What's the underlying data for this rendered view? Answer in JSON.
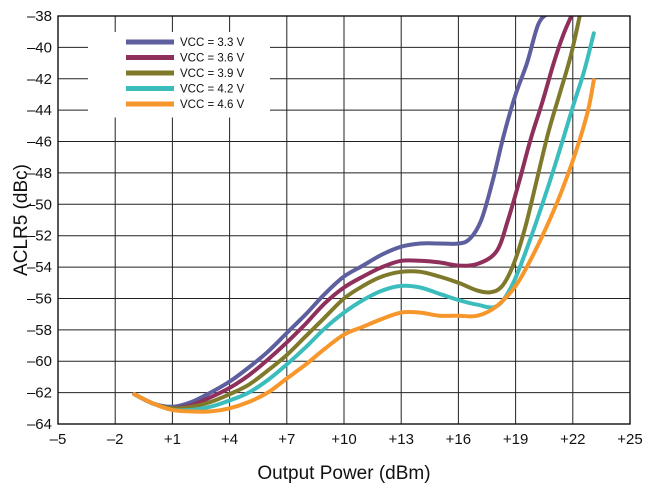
{
  "chart_data": {
    "type": "line",
    "title": "",
    "xlabel": "Output Power (dBm)",
    "ylabel": "ACLR5 (dBc)",
    "xlim": [
      -5,
      25
    ],
    "ylim": [
      -64,
      -38
    ],
    "grid": true,
    "legend_position": "top-left",
    "x_ticks": [
      {
        "value": -5,
        "label": "–5"
      },
      {
        "value": -2,
        "label": "–2"
      },
      {
        "value": 1,
        "label": "+1"
      },
      {
        "value": 4,
        "label": "+4"
      },
      {
        "value": 7,
        "label": "+7"
      },
      {
        "value": 10,
        "label": "+10"
      },
      {
        "value": 13,
        "label": "+13"
      },
      {
        "value": 16,
        "label": "+16"
      },
      {
        "value": 19,
        "label": "+19"
      },
      {
        "value": 22,
        "label": "+22"
      },
      {
        "value": 25,
        "label": "+25"
      }
    ],
    "y_ticks": [
      {
        "value": -38,
        "label": "–38"
      },
      {
        "value": -40,
        "label": "–40"
      },
      {
        "value": -42,
        "label": "–42"
      },
      {
        "value": -44,
        "label": "–44"
      },
      {
        "value": -46,
        "label": "–46"
      },
      {
        "value": -48,
        "label": "–48"
      },
      {
        "value": -50,
        "label": "–50"
      },
      {
        "value": -52,
        "label": "–52"
      },
      {
        "value": -54,
        "label": "–54"
      },
      {
        "value": -56,
        "label": "–56"
      },
      {
        "value": -58,
        "label": "–58"
      },
      {
        "value": -60,
        "label": "–60"
      },
      {
        "value": -62,
        "label": "–62"
      },
      {
        "value": -64,
        "label": "–64"
      }
    ],
    "series": [
      {
        "name": "VCC = 3.3 V",
        "color": "#5e5f9e",
        "x": [
          -1,
          0,
          1,
          2,
          3,
          4,
          5,
          6,
          7,
          8,
          9,
          10,
          11,
          12,
          13,
          14,
          15,
          16,
          16.6,
          17.2,
          17.8,
          18.4,
          19,
          19.6,
          20.2,
          20.8,
          21.3
        ],
        "y": [
          -62.1,
          -62.7,
          -62.9,
          -62.6,
          -62,
          -61.3,
          -60.4,
          -59.4,
          -58.2,
          -57,
          -55.7,
          -54.6,
          -53.9,
          -53.2,
          -52.7,
          -52.5,
          -52.5,
          -52.5,
          -52.2,
          -51,
          -48.5,
          -45.5,
          -43,
          -41,
          -38.5,
          -37.8,
          -37.8
        ]
      },
      {
        "name": "VCC = 3.6 V",
        "color": "#8e2f5c",
        "x": [
          -1,
          0,
          1,
          2,
          3,
          4,
          5,
          6,
          7,
          8,
          9,
          10,
          11,
          12,
          13,
          14,
          15,
          16,
          17,
          18,
          18.6,
          19.2,
          19.8,
          20.4,
          21,
          21.5,
          22
        ],
        "y": [
          -62.1,
          -62.7,
          -63,
          -62.8,
          -62.3,
          -61.7,
          -60.9,
          -59.9,
          -58.8,
          -57.6,
          -56.3,
          -55.3,
          -54.6,
          -54,
          -53.6,
          -53.6,
          -53.7,
          -53.9,
          -53.8,
          -53,
          -51,
          -48.5,
          -45.8,
          -43.5,
          -41,
          -39.2,
          -37.8
        ]
      },
      {
        "name": "VCC = 3.9 V",
        "color": "#7f7a2b",
        "x": [
          -1,
          0,
          1,
          2,
          3,
          4,
          5,
          6,
          7,
          8,
          9,
          10,
          11,
          12,
          13,
          14,
          15,
          16,
          17,
          17.7,
          18.3,
          18.9,
          19.5,
          20.1,
          20.7,
          21.3,
          21.9,
          22.4
        ],
        "y": [
          -62.1,
          -62.7,
          -63,
          -62.9,
          -62.6,
          -62.1,
          -61.5,
          -60.6,
          -59.6,
          -58.4,
          -57.2,
          -56,
          -55.2,
          -54.6,
          -54.3,
          -54.3,
          -54.6,
          -55,
          -55.5,
          -55.6,
          -55.2,
          -53.8,
          -51.5,
          -48.5,
          -45.5,
          -43,
          -40.5,
          -37.8
        ]
      },
      {
        "name": "VCC = 4.2 V",
        "color": "#3cbdbd",
        "x": [
          -1,
          0,
          1,
          2,
          3,
          4,
          5,
          6,
          7,
          8,
          9,
          10,
          11,
          12,
          13,
          14,
          15,
          16,
          17,
          18,
          18.8,
          19.6,
          20.4,
          21.2,
          22,
          22.6,
          23.1
        ],
        "y": [
          -62.1,
          -62.7,
          -63.1,
          -63.1,
          -62.9,
          -62.5,
          -62,
          -61.2,
          -60.2,
          -59.1,
          -57.9,
          -56.9,
          -56.1,
          -55.5,
          -55.2,
          -55.3,
          -55.7,
          -56.1,
          -56.4,
          -56.5,
          -55.2,
          -52.8,
          -50,
          -47,
          -43.8,
          -41.5,
          -39.1
        ]
      },
      {
        "name": "VCC = 4.6 V",
        "color": "#f7962b",
        "x": [
          -1,
          0,
          1,
          2,
          3,
          4,
          5,
          6,
          7,
          8,
          9,
          10,
          11,
          12,
          13,
          14,
          15,
          16,
          17,
          18,
          19,
          19.8,
          20.6,
          21.4,
          22.2,
          22.8,
          23.1
        ],
        "y": [
          -62.1,
          -62.7,
          -63.1,
          -63.2,
          -63.2,
          -63,
          -62.6,
          -62,
          -61.1,
          -60.2,
          -59.2,
          -58.3,
          -57.8,
          -57.3,
          -56.9,
          -56.9,
          -57.1,
          -57.1,
          -57.1,
          -56.5,
          -55.2,
          -53.5,
          -51.5,
          -49.2,
          -46.5,
          -44,
          -42.1
        ]
      }
    ]
  }
}
